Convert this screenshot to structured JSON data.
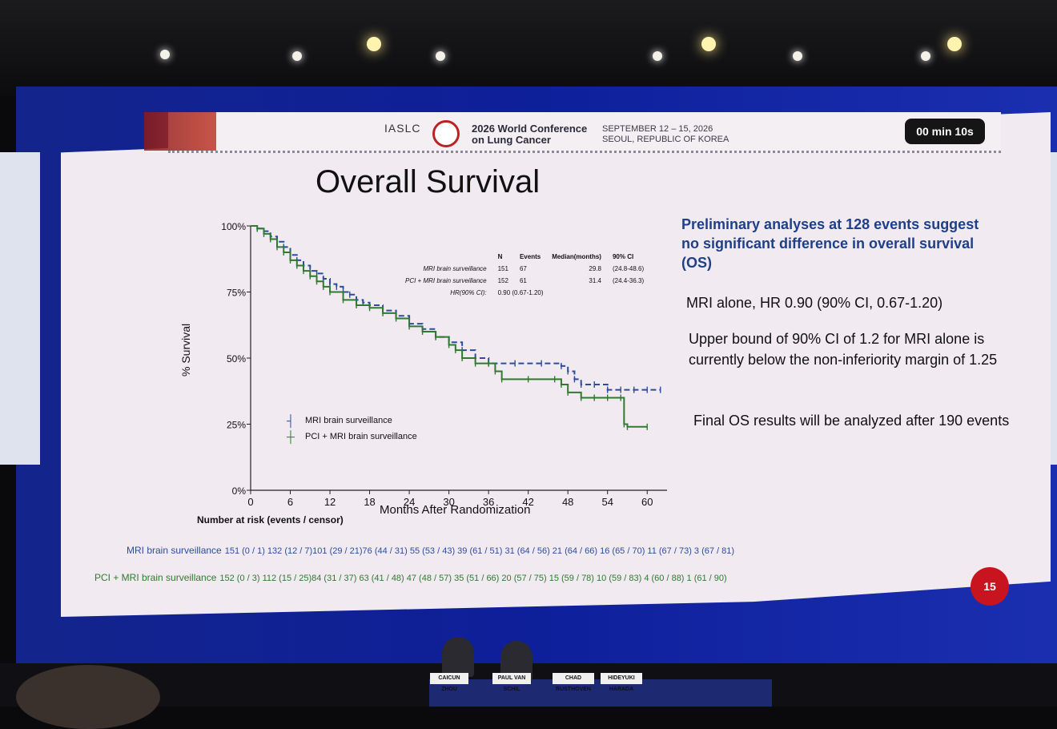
{
  "venue": {
    "org": "IASLC",
    "conference": [
      "2026 World Conference",
      "on Lung Cancer"
    ],
    "dates": [
      "SEPTEMBER 12 – 15, 2026",
      "SEOUL, REPUBLIC OF KOREA"
    ],
    "timer": "00 min 10s",
    "speakers": [
      "CAICUN ZHOU",
      "PAUL VAN SCHIL",
      "CHAD RUSTHOVEN",
      "HIDEYUKI HARADA"
    ]
  },
  "slide": {
    "title": "Overall Survival",
    "page_number": "15",
    "headline": "Preliminary analyses at 128 events suggest no significant difference in overall survival (OS)",
    "bullets": [
      "MRI alone, HR 0.90 (90% CI, 0.67-1.20)",
      "Upper bound of 90% CI of 1.2 for MRI alone is currently below the non-inferiority margin of 1.25",
      "Final OS results will be analyzed after 190 events"
    ]
  },
  "stats_table": {
    "headers": [
      "",
      "N",
      "Events",
      "Median(months)",
      "90% CI"
    ],
    "rows": [
      [
        "MRI brain surveillance",
        "151",
        "67",
        "29.8",
        "(24.8-48.6)"
      ],
      [
        "PCI + MRI brain surveillance",
        "152",
        "61",
        "31.4",
        "(24.4-36.3)"
      ]
    ],
    "hr_label": "HR(90% CI):",
    "hr_value": "0.90 (0.67-1.20)"
  },
  "risk_table": {
    "title": "Number at risk (events / censor)",
    "rows": [
      {
        "label": "MRI brain surveillance",
        "values": "151 (0 / 1)   132 (12 / 7)101 (29 / 21)76 (44 / 31) 55 (53 / 43) 39 (61 / 51) 31 (64 / 56) 21 (64 / 66) 16 (65 / 70) 11 (67 / 73)   3 (67 / 81)"
      },
      {
        "label": "PCI + MRI brain surveillance",
        "values": "152 (0 / 3) 112 (15 / 25)84 (31 / 37) 63 (41 / 48) 47 (48 / 57) 35 (51 / 66) 20 (57 / 75) 15 (59 / 78) 10 (59 / 83)  4 (60 / 88)   1 (61 / 90)"
      }
    ]
  },
  "chart_data": {
    "type": "line",
    "title": "Overall Survival",
    "xlabel": "Months After Randomization",
    "ylabel": "% Survival",
    "xlim": [
      0,
      63
    ],
    "ylim": [
      0,
      100
    ],
    "x_ticks": [
      0,
      6,
      12,
      18,
      24,
      30,
      36,
      42,
      48,
      54,
      60
    ],
    "y_ticks": [
      0,
      25,
      50,
      75,
      100
    ],
    "y_tick_labels": [
      "0%",
      "25%",
      "50%",
      "75%",
      "100%"
    ],
    "legend_position": "lower-left",
    "series": [
      {
        "name": "MRI brain surveillance",
        "color": "#2a4e9c",
        "style": "dashed",
        "x": [
          0,
          1,
          2,
          3,
          4,
          5,
          6,
          7,
          8,
          9,
          10,
          11,
          12,
          13,
          14,
          15,
          16,
          17,
          18,
          20,
          22,
          24,
          26,
          28,
          30,
          32,
          34,
          36,
          40,
          44,
          47,
          48,
          49,
          50,
          52,
          54,
          56,
          58,
          60,
          62
        ],
        "y": [
          100,
          99,
          98,
          96,
          94,
          92,
          89,
          87,
          85,
          83,
          82,
          80,
          78,
          77,
          75,
          74,
          72,
          71,
          70,
          68,
          66,
          63,
          61,
          58,
          56,
          53,
          50,
          48,
          48,
          48,
          47,
          45,
          42,
          40,
          40,
          38,
          38,
          38,
          38,
          38
        ]
      },
      {
        "name": "PCI + MRI brain surveillance",
        "color": "#2f7a2f",
        "style": "solid",
        "x": [
          0,
          1,
          2,
          3,
          4,
          5,
          6,
          7,
          8,
          9,
          10,
          11,
          12,
          14,
          16,
          18,
          20,
          22,
          24,
          26,
          28,
          30,
          31,
          32,
          34,
          36,
          37,
          38,
          42,
          46,
          47,
          48,
          50,
          52,
          54,
          56,
          56.5,
          57,
          60
        ],
        "y": [
          100,
          99,
          97,
          95,
          92,
          90,
          87,
          85,
          83,
          81,
          79,
          77,
          75,
          72,
          70,
          69,
          67,
          65,
          62,
          60,
          58,
          55,
          53,
          50,
          48,
          48,
          45,
          42,
          42,
          42,
          40,
          37,
          35,
          35,
          35,
          35,
          25,
          24,
          24
        ]
      }
    ]
  }
}
